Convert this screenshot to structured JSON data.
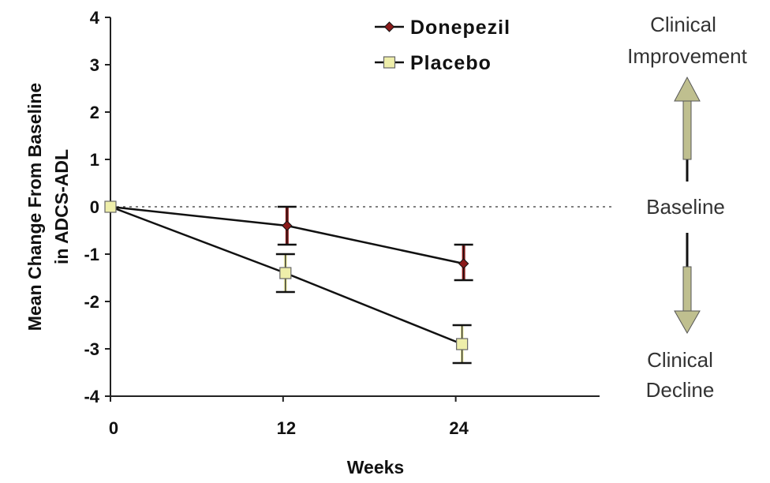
{
  "chart_data": {
    "type": "line",
    "title": "",
    "xlabel": "Weeks",
    "ylabel": "Mean Change From Baseline in ADCS-ADL",
    "x": [
      0,
      12,
      24
    ],
    "x_tick_labels": [
      "0",
      "12",
      "24"
    ],
    "xlim": [
      0,
      34
    ],
    "ylim": [
      -4,
      4
    ],
    "y_ticks": [
      4,
      3,
      2,
      1,
      0,
      -1,
      -2,
      -3,
      -4
    ],
    "y_tick_labels": [
      "4",
      "3",
      "2",
      "1",
      "0",
      "-1",
      "-2",
      "-3",
      "-4"
    ],
    "baseline_reference": 0,
    "grid": false,
    "legend_position": "top-center",
    "series": [
      {
        "name": "Donepezil",
        "marker": "diamond",
        "color": "#8b1a1a",
        "values": [
          0,
          -0.4,
          -1.2
        ],
        "error_low": [
          0,
          -0.8,
          -1.55
        ],
        "error_high": [
          0,
          0.0,
          -0.8
        ]
      },
      {
        "name": "Placebo",
        "marker": "square",
        "color": "#eeeeaa",
        "values": [
          0,
          -1.4,
          -2.9
        ],
        "error_low": [
          0,
          -1.8,
          -3.3
        ],
        "error_high": [
          0,
          -1.0,
          -2.5
        ]
      }
    ]
  },
  "annotations": {
    "top_line1": "Clinical",
    "top_line2": "Improvement",
    "middle": "Baseline",
    "bottom_line1": "Clinical",
    "bottom_line2": "Decline",
    "arrow_color": "#bfbf8f"
  }
}
